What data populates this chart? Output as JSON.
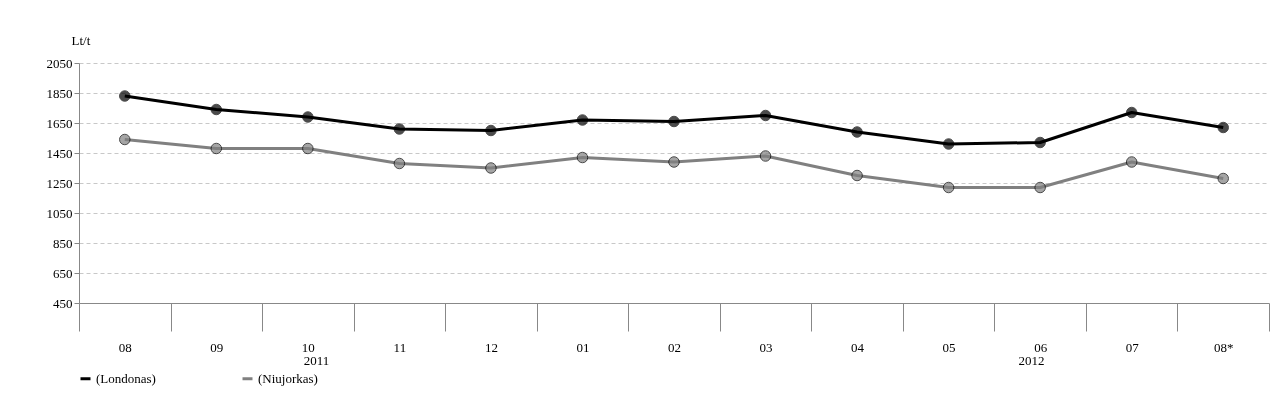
{
  "chart_data": {
    "type": "line",
    "ylabel": "Lt/t",
    "categories": [
      "08",
      "09",
      "10",
      "11",
      "12",
      "01",
      "02",
      "03",
      "04",
      "05",
      "06",
      "07",
      "08*"
    ],
    "series": [
      {
        "name": "(Londonas)",
        "color": "#000000",
        "values": [
          1830,
          1740,
          1690,
          1610,
          1600,
          1670,
          1660,
          1700,
          1590,
          1510,
          1520,
          1720,
          1620
        ]
      },
      {
        "name": "(Niujorkas)",
        "color": "#808080",
        "values": [
          1540,
          1480,
          1480,
          1380,
          1350,
          1420,
          1390,
          1430,
          1300,
          1220,
          1220,
          1390,
          1280
        ]
      }
    ],
    "ylim": [
      450,
      2050
    ],
    "yticks": [
      450,
      650,
      850,
      1050,
      1250,
      1450,
      1650,
      1850,
      2050
    ],
    "grid": "y",
    "legend": "bottom",
    "marker": "circle",
    "annotations": [
      "2011",
      "2012"
    ]
  }
}
